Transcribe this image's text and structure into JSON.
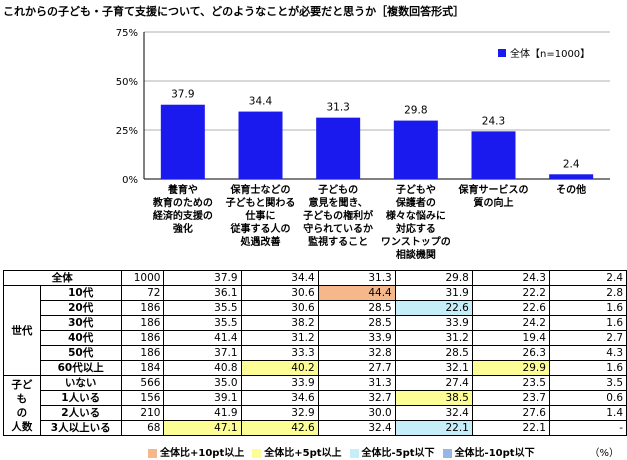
{
  "title": "これからの子ども・子育て支援について、どのようなことが必要だと思うか［複数回答形式］",
  "unit": "（%）",
  "colors": {
    "bar": "#1a1aee",
    "hi10": "#f5b88a",
    "hi5": "#fdfd96",
    "lo5": "#c6eef8",
    "lo10": "#99b5e8"
  },
  "chart_data": {
    "type": "bar",
    "categories": [
      "養育や\n教育のための\n経済的支援の\n強化",
      "保育士などの\n子どもと関わる\n仕事に\n従事する人の\n処遇改善",
      "子どもの\n意見を聞き、\n子どもの権利が\n守られているか\n監視すること",
      "子どもや\n保護者の\n様々な悩みに\n対応する\nワンストップの\n相談機関",
      "保育サービスの\n質の向上",
      "その他"
    ],
    "series": [
      {
        "name": "全体【n=1000】",
        "values": [
          37.9,
          34.4,
          31.3,
          29.8,
          24.3,
          2.4
        ]
      }
    ],
    "ylim": [
      0,
      75
    ],
    "yticks": [
      "0%",
      "25%",
      "50%",
      "75%"
    ],
    "legend": "全体【n=1000】"
  },
  "table": {
    "total": {
      "label": "全体",
      "n": "1000",
      "values": [
        "37.9",
        "34.4",
        "31.3",
        "29.8",
        "24.3",
        "2.4"
      ]
    },
    "groups": [
      {
        "label": "世代",
        "rows": [
          {
            "label": "10代",
            "n": "72",
            "values": [
              "36.1",
              "30.6",
              "44.4",
              "31.9",
              "22.2",
              "2.8"
            ],
            "hl": [
              "",
              "",
              "hi10",
              "",
              "",
              ""
            ]
          },
          {
            "label": "20代",
            "n": "186",
            "values": [
              "35.5",
              "30.6",
              "28.5",
              "22.6",
              "22.6",
              "1.6"
            ],
            "hl": [
              "",
              "",
              "",
              "lo5",
              "",
              ""
            ]
          },
          {
            "label": "30代",
            "n": "186",
            "values": [
              "35.5",
              "38.2",
              "28.5",
              "33.9",
              "24.2",
              "1.6"
            ],
            "hl": [
              "",
              "",
              "",
              "",
              "",
              ""
            ]
          },
          {
            "label": "40代",
            "n": "186",
            "values": [
              "41.4",
              "31.2",
              "33.9",
              "31.2",
              "19.4",
              "2.7"
            ],
            "hl": [
              "",
              "",
              "",
              "",
              "",
              ""
            ]
          },
          {
            "label": "50代",
            "n": "186",
            "values": [
              "37.1",
              "33.3",
              "32.8",
              "28.5",
              "26.3",
              "4.3"
            ],
            "hl": [
              "",
              "",
              "",
              "",
              "",
              ""
            ]
          },
          {
            "label": "60代以上",
            "n": "184",
            "values": [
              "40.8",
              "40.2",
              "27.7",
              "32.1",
              "29.9",
              "1.6"
            ],
            "hl": [
              "",
              "hi5",
              "",
              "",
              "hi5",
              ""
            ]
          }
        ]
      },
      {
        "label": "子ども\nの\n人数",
        "rows": [
          {
            "label": "いない",
            "n": "566",
            "values": [
              "35.0",
              "33.9",
              "31.3",
              "27.4",
              "23.5",
              "3.5"
            ],
            "hl": [
              "",
              "",
              "",
              "",
              "",
              ""
            ]
          },
          {
            "label": "1人いる",
            "n": "156",
            "values": [
              "39.1",
              "34.6",
              "32.7",
              "38.5",
              "23.7",
              "0.6"
            ],
            "hl": [
              "",
              "",
              "",
              "hi5",
              "",
              ""
            ]
          },
          {
            "label": "2人いる",
            "n": "210",
            "values": [
              "41.9",
              "32.9",
              "30.0",
              "32.4",
              "27.6",
              "1.4"
            ],
            "hl": [
              "",
              "",
              "",
              "",
              "",
              ""
            ]
          },
          {
            "label": "3人以上いる",
            "n": "68",
            "values": [
              "47.1",
              "42.6",
              "32.4",
              "22.1",
              "22.1",
              "-"
            ],
            "hl": [
              "hi5",
              "hi5",
              "",
              "lo5",
              "",
              ""
            ]
          }
        ]
      }
    ]
  },
  "legend_bottom": [
    {
      "key": "hi10",
      "label": "全体比+10pt以上"
    },
    {
      "key": "hi5",
      "label": "全体比+5pt以上"
    },
    {
      "key": "lo5",
      "label": "全体比-5pt以下"
    },
    {
      "key": "lo10",
      "label": "全体比-10pt以下"
    }
  ]
}
